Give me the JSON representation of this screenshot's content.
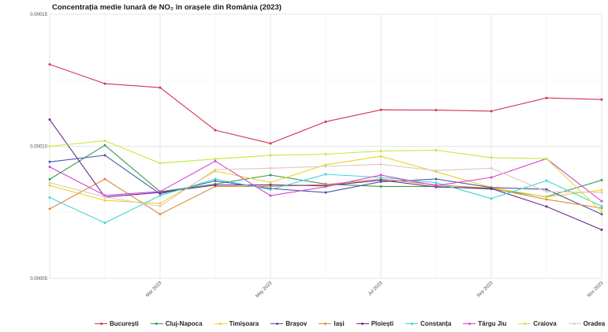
{
  "chart_data": {
    "type": "line",
    "title": "Concentrația medie lunară de NO₂ în orașele din România (2023)",
    "xlabel": "",
    "ylabel": "",
    "x": [
      "2023-01",
      "2023-02",
      "2023-03",
      "2023-04",
      "2023-05",
      "2023-06",
      "2023-07",
      "2023-08",
      "2023-09",
      "2023-10",
      "2023-11"
    ],
    "x_tick_labels": [
      "Mar 2023",
      "May 2023",
      "Jul 2023",
      "Sep 2023",
      "Nov 2023"
    ],
    "y_tick_labels": [
      "0.00015",
      "0.00010",
      "0.00005"
    ],
    "y_ticks": [
      0.00015,
      0.0001,
      5e-05
    ],
    "ylim": [
      5e-05,
      0.00015
    ],
    "grid": true,
    "legend_position": "bottom",
    "series": [
      {
        "name": "București",
        "color": "#d1344f",
        "values": [
          0.000131,
          0.0001237,
          0.0001222,
          0.0001061,
          0.0001011,
          0.0001093,
          0.0001138,
          0.0001137,
          0.0001133,
          0.0001183,
          0.0001177
        ]
      },
      {
        "name": "Cluj-Napoca",
        "color": "#3c9b4c",
        "values": [
          8.75e-05,
          0.0001004,
          8.28e-05,
          8.57e-05,
          8.91e-05,
          8.57e-05,
          8.48e-05,
          8.48e-05,
          8.38e-05,
          8.09e-05,
          8.72e-05
        ]
      },
      {
        "name": "Timișoara",
        "color": "#e8d42c",
        "values": [
          8.52e-05,
          7.95e-05,
          7.84e-05,
          9.06e-05,
          8.63e-05,
          9.3e-05,
          9.62e-05,
          9.04e-05,
          8.44e-05,
          8.08e-05,
          8.34e-05
        ]
      },
      {
        "name": "Brașov",
        "color": "#4757a6",
        "values": [
          9.41e-05,
          9.66e-05,
          8.2e-05,
          8.69e-05,
          8.4e-05,
          8.25e-05,
          8.66e-05,
          8.76e-05,
          8.44e-05,
          8.37e-05,
          7.43e-05
        ]
      },
      {
        "name": "Iași",
        "color": "#df8a3c",
        "values": [
          7.63e-05,
          8.76e-05,
          7.43e-05,
          8.48e-05,
          8.48e-05,
          8.55e-05,
          8.76e-05,
          8.54e-05,
          8.41e-05,
          7.99e-05,
          7.66e-05
        ]
      },
      {
        "name": "Ploiești",
        "color": "#6a2c91",
        "values": [
          0.0001101,
          8.08e-05,
          8.25e-05,
          8.53e-05,
          8.54e-05,
          8.5e-05,
          8.72e-05,
          8.46e-05,
          8.4e-05,
          7.72e-05,
          6.84e-05
        ]
      },
      {
        "name": "Constanța",
        "color": "#3fd6d6",
        "values": [
          8.06e-05,
          7.1e-05,
          8.13e-05,
          8.76e-05,
          8.36e-05,
          8.94e-05,
          8.82e-05,
          8.62e-05,
          8.02e-05,
          8.7e-05,
          7.73e-05
        ]
      },
      {
        "name": "Târgu Jiu",
        "color": "#d843d3",
        "values": [
          9.22e-05,
          8.14e-05,
          8.29e-05,
          9.44e-05,
          8.13e-05,
          8.47e-05,
          8.91e-05,
          8.51e-05,
          8.82e-05,
          9.53e-05,
          7.92e-05
        ]
      },
      {
        "name": "Craiova",
        "color": "#c5e83a",
        "values": [
          0.0001,
          0.0001021,
          9.36e-05,
          9.52e-05,
          9.66e-05,
          9.7e-05,
          9.82e-05,
          9.85e-05,
          9.57e-05,
          9.53e-05,
          7.53e-05
        ]
      },
      {
        "name": "Oradea",
        "color": "#e0c7c0",
        "values": [
          8.62e-05,
          8.08e-05,
          7.73e-05,
          9.12e-05,
          9.17e-05,
          9.24e-05,
          9.32e-05,
          9.08e-05,
          9.17e-05,
          8.28e-05,
          8.25e-05
        ]
      }
    ]
  }
}
